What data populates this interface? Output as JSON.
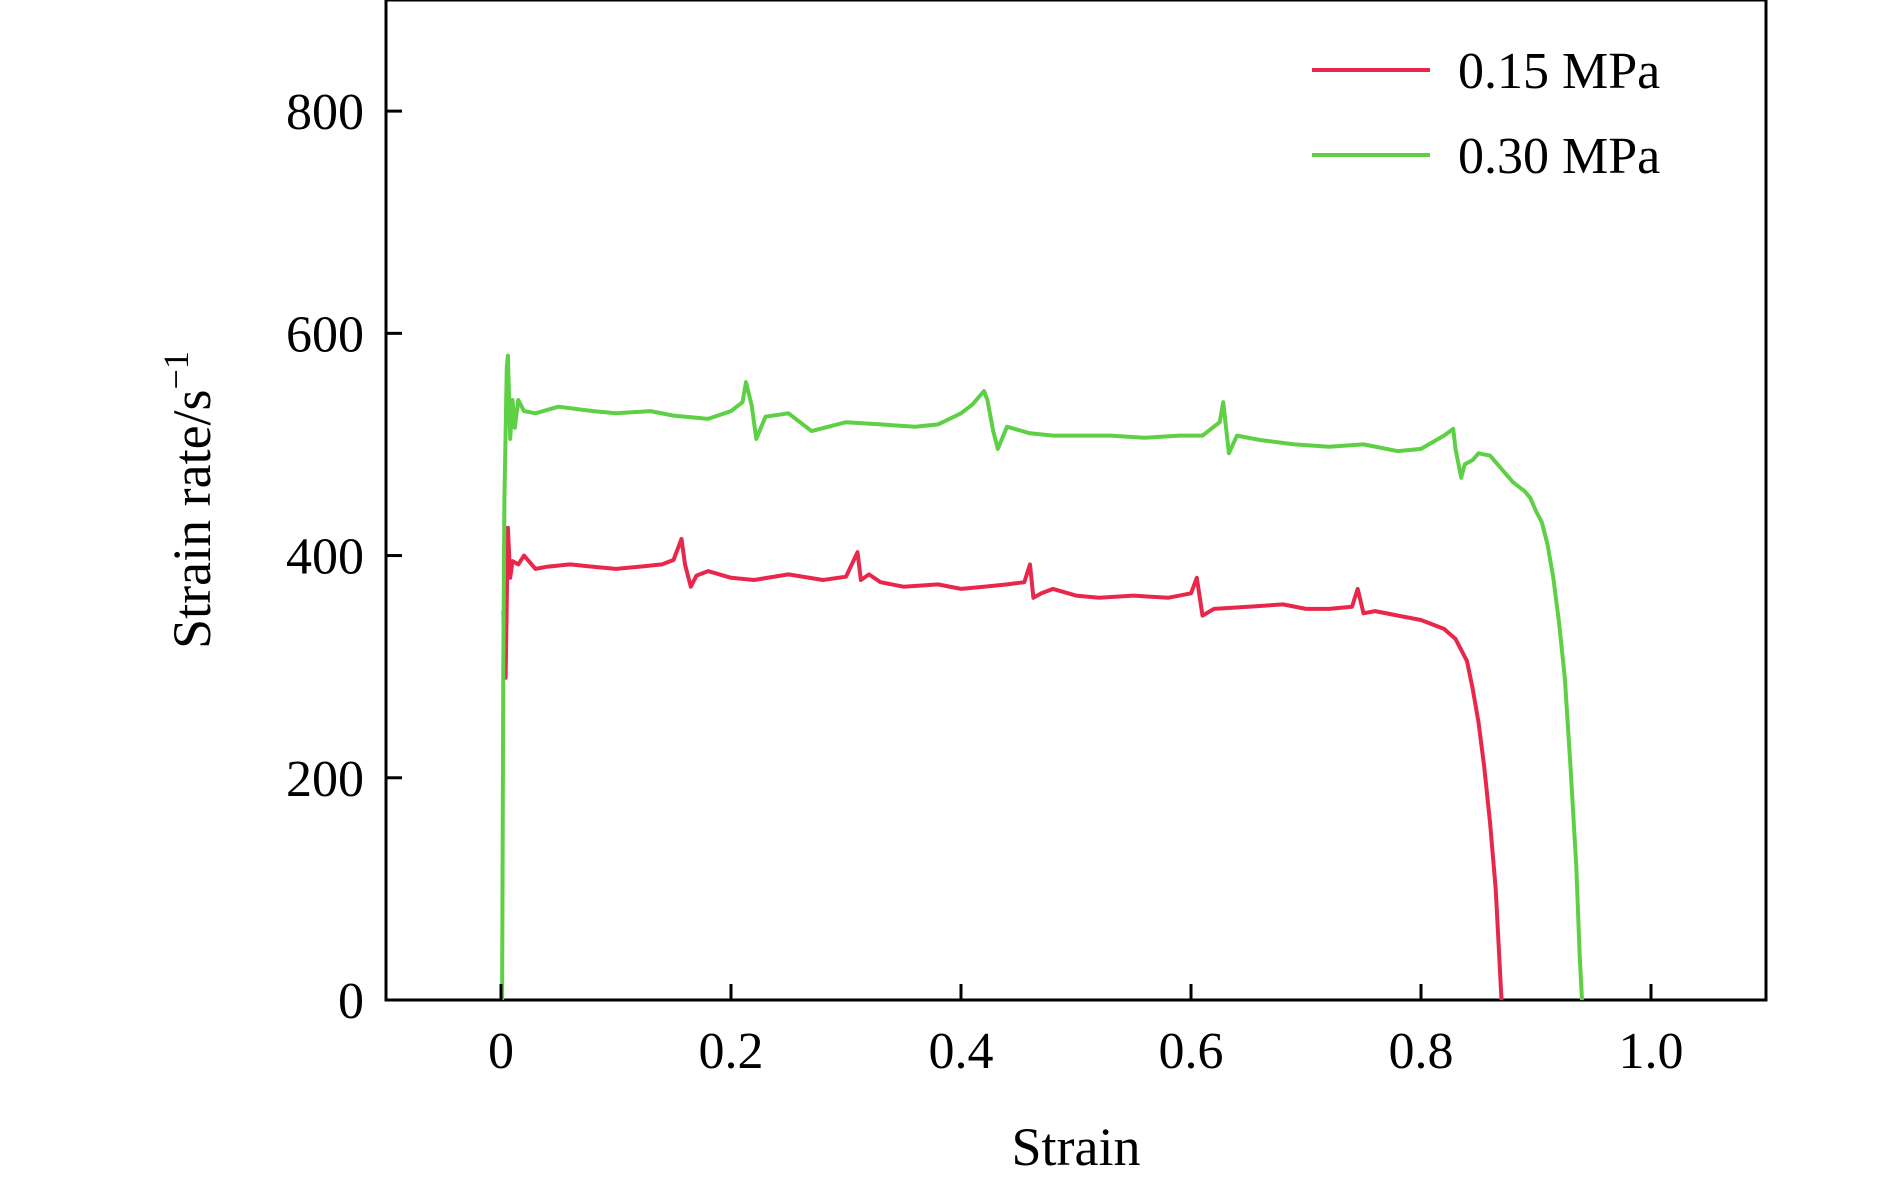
{
  "chart_data": {
    "type": "line",
    "title": "",
    "xlabel": "Strain",
    "ylabel": {
      "text": "Strain rate/s",
      "superscript": "−1"
    },
    "xlim": [
      -0.1,
      1.1
    ],
    "ylim": [
      0,
      900
    ],
    "xticks": [
      0,
      0.2,
      0.4,
      0.6,
      0.8,
      1.0
    ],
    "xtick_labels": [
      "0",
      "0.2",
      "0.4",
      "0.6",
      "0.8",
      "1.0"
    ],
    "yticks": [
      0,
      200,
      400,
      600,
      800
    ],
    "ytick_labels": [
      "0",
      "200",
      "400",
      "600",
      "800"
    ],
    "grid": false,
    "legend_position": "top-right",
    "series": [
      {
        "name": "0.15 MPa",
        "color": "#e8274b",
        "x": [
          0.002,
          0.004,
          0.006,
          0.008,
          0.01,
          0.015,
          0.02,
          0.03,
          0.04,
          0.06,
          0.08,
          0.1,
          0.12,
          0.14,
          0.15,
          0.157,
          0.16,
          0.165,
          0.17,
          0.18,
          0.2,
          0.22,
          0.25,
          0.28,
          0.3,
          0.31,
          0.313,
          0.32,
          0.33,
          0.35,
          0.38,
          0.4,
          0.42,
          0.44,
          0.455,
          0.46,
          0.463,
          0.47,
          0.48,
          0.5,
          0.52,
          0.55,
          0.58,
          0.6,
          0.605,
          0.61,
          0.62,
          0.65,
          0.68,
          0.7,
          0.72,
          0.74,
          0.745,
          0.75,
          0.76,
          0.78,
          0.8,
          0.82,
          0.83,
          0.84,
          0.845,
          0.85,
          0.855,
          0.86,
          0.865,
          0.868,
          0.87
        ],
        "y": [
          350,
          290,
          425,
          380,
          395,
          392,
          400,
          388,
          390,
          392,
          390,
          388,
          390,
          392,
          396,
          415,
          392,
          372,
          382,
          386,
          380,
          378,
          383,
          378,
          381,
          403,
          378,
          383,
          376,
          372,
          374,
          370,
          372,
          374,
          376,
          392,
          362,
          366,
          370,
          364,
          362,
          364,
          362,
          366,
          380,
          346,
          352,
          354,
          356,
          352,
          352,
          354,
          370,
          348,
          350,
          346,
          342,
          334,
          325,
          305,
          280,
          250,
          210,
          160,
          100,
          40,
          0
        ]
      },
      {
        "name": "0.30 MPa",
        "color": "#5dd045",
        "x": [
          0.001,
          0.002,
          0.003,
          0.004,
          0.005,
          0.006,
          0.008,
          0.01,
          0.012,
          0.015,
          0.02,
          0.03,
          0.05,
          0.08,
          0.1,
          0.13,
          0.15,
          0.18,
          0.2,
          0.21,
          0.213,
          0.218,
          0.222,
          0.23,
          0.25,
          0.27,
          0.3,
          0.33,
          0.36,
          0.38,
          0.4,
          0.41,
          0.42,
          0.423,
          0.428,
          0.432,
          0.44,
          0.46,
          0.48,
          0.5,
          0.53,
          0.56,
          0.59,
          0.61,
          0.625,
          0.628,
          0.633,
          0.64,
          0.66,
          0.69,
          0.72,
          0.75,
          0.78,
          0.8,
          0.82,
          0.828,
          0.83,
          0.835,
          0.838,
          0.845,
          0.85,
          0.86,
          0.87,
          0.88,
          0.89,
          0.895,
          0.9,
          0.905,
          0.91,
          0.915,
          0.92,
          0.925,
          0.93,
          0.935,
          0.938,
          0.94
        ],
        "y": [
          0,
          300,
          450,
          510,
          570,
          580,
          505,
          540,
          515,
          540,
          530,
          528,
          534,
          530,
          528,
          530,
          526,
          523,
          530,
          538,
          556,
          535,
          505,
          525,
          528,
          512,
          520,
          518,
          516,
          518,
          528,
          536,
          548,
          540,
          512,
          496,
          516,
          510,
          508,
          508,
          508,
          506,
          508,
          508,
          520,
          538,
          492,
          508,
          504,
          500,
          498,
          500,
          494,
          496,
          508,
          514,
          496,
          470,
          482,
          486,
          492,
          490,
          478,
          466,
          458,
          452,
          440,
          430,
          410,
          380,
          340,
          290,
          210,
          120,
          40,
          0
        ]
      }
    ]
  }
}
